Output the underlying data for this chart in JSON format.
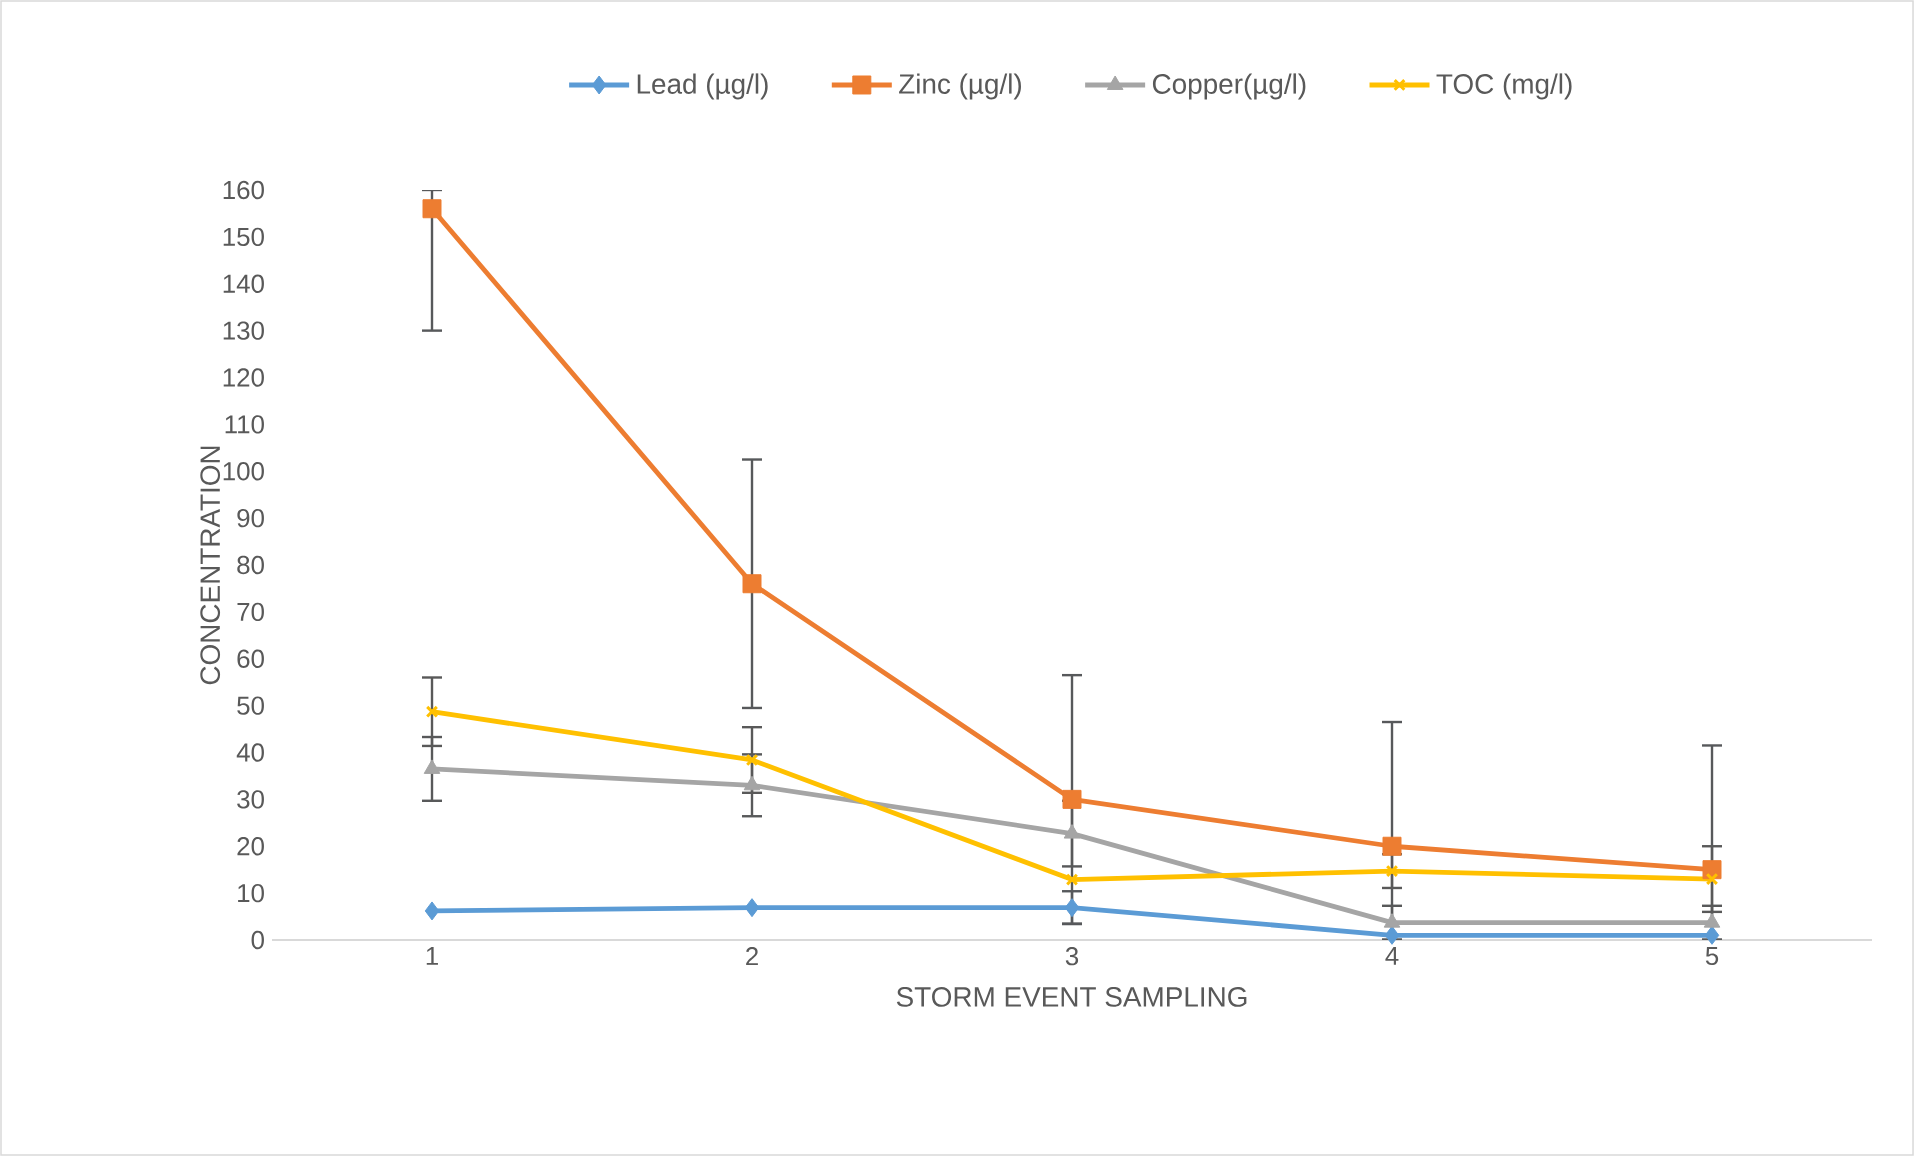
{
  "chart_data": {
    "type": "line",
    "xlabel": "STORM EVENT SAMPLING",
    "ylabel": "CONCENTRATION",
    "categories": [
      "1",
      "2",
      "3",
      "4",
      "5"
    ],
    "ylim": [
      0,
      160
    ],
    "yticks": [
      0,
      10,
      20,
      30,
      40,
      50,
      60,
      70,
      80,
      90,
      100,
      110,
      120,
      130,
      140,
      150,
      160
    ],
    "grid": false,
    "legend": "top",
    "series": [
      {
        "name": "Lead (µg/l)",
        "color": "#5b9bd5",
        "marker": "diamond",
        "values": [
          6.2,
          6.9,
          6.9,
          1,
          1
        ],
        "errors": [
          null,
          null,
          3.5,
          null,
          null
        ]
      },
      {
        "name": "Zinc (µg/l)",
        "color": "#ed7d31",
        "marker": "square",
        "values": [
          156,
          76,
          30,
          20,
          15
        ],
        "errors": [
          [
            130,
            160
          ],
          26.5,
          26.5,
          [
            0,
            46.5
          ],
          [
            0,
            41.5
          ]
        ]
      },
      {
        "name": "Copper(µg/l)",
        "color": "#a5a5a5",
        "marker": "triangle",
        "values": [
          36.5,
          33,
          22.7,
          3.7,
          3.7
        ],
        "errors": [
          6.8,
          6.6,
          7,
          3.6,
          3.6
        ]
      },
      {
        "name": "TOC (mg/l)",
        "color": "#ffc000",
        "marker": "cross",
        "values": [
          48.7,
          38.4,
          12.9,
          14.7,
          13
        ],
        "errors": [
          7.3,
          7,
          null,
          3.6,
          7
        ]
      }
    ]
  }
}
